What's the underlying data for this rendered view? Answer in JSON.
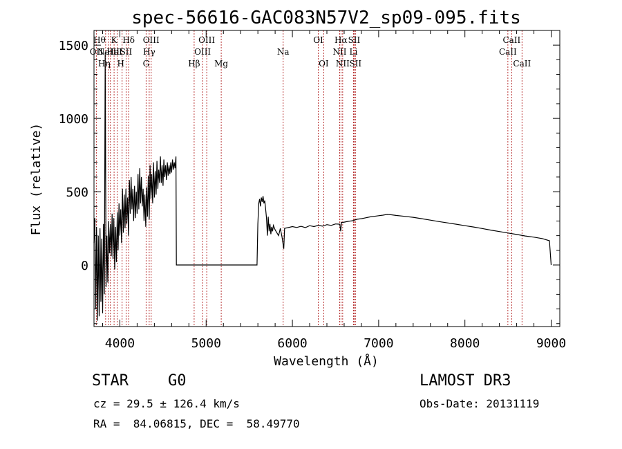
{
  "chart_data": {
    "type": "line",
    "title": "spec-56616-GAC083N57V2_sp09-095.fits",
    "xlabel": "Wavelength (Å)",
    "ylabel": "Flux (relative)",
    "xlim": [
      3700,
      9100
    ],
    "ylim": [
      -420,
      1600
    ],
    "xticks": [
      4000,
      5000,
      6000,
      7000,
      8000,
      9000
    ],
    "yticks": [
      0,
      500,
      1000,
      1500
    ],
    "grid": false,
    "series": [
      {
        "name": "flux",
        "color": "#000000",
        "points": [
          [
            3700,
            150
          ],
          [
            3710,
            320
          ],
          [
            3720,
            -300
          ],
          [
            3730,
            260
          ],
          [
            3740,
            -380
          ],
          [
            3750,
            200
          ],
          [
            3760,
            -350
          ],
          [
            3770,
            250
          ],
          [
            3780,
            -250
          ],
          [
            3790,
            180
          ],
          [
            3800,
            -330
          ],
          [
            3810,
            280
          ],
          [
            3820,
            -200
          ],
          [
            3830,
            1450
          ],
          [
            3840,
            -150
          ],
          [
            3850,
            200
          ],
          [
            3860,
            -120
          ],
          [
            3870,
            300
          ],
          [
            3880,
            80
          ],
          [
            3890,
            280
          ],
          [
            3900,
            60
          ],
          [
            3910,
            350
          ],
          [
            3920,
            40
          ],
          [
            3930,
            320
          ],
          [
            3940,
            -30
          ],
          [
            3950,
            260
          ],
          [
            3960,
            20
          ],
          [
            3970,
            360
          ],
          [
            3980,
            100
          ],
          [
            3990,
            420
          ],
          [
            4000,
            200
          ],
          [
            4010,
            380
          ],
          [
            4020,
            150
          ],
          [
            4030,
            520
          ],
          [
            4040,
            220
          ],
          [
            4050,
            480
          ],
          [
            4060,
            250
          ],
          [
            4070,
            520
          ],
          [
            4080,
            280
          ],
          [
            4090,
            460
          ],
          [
            4100,
            200
          ],
          [
            4110,
            580
          ],
          [
            4120,
            350
          ],
          [
            4130,
            600
          ],
          [
            4140,
            380
          ],
          [
            4150,
            520
          ],
          [
            4160,
            300
          ],
          [
            4170,
            540
          ],
          [
            4180,
            320
          ],
          [
            4190,
            500
          ],
          [
            4200,
            350
          ],
          [
            4210,
            620
          ],
          [
            4220,
            380
          ],
          [
            4230,
            660
          ],
          [
            4240,
            420
          ],
          [
            4250,
            600
          ],
          [
            4260,
            400
          ],
          [
            4270,
            520
          ],
          [
            4280,
            300
          ],
          [
            4290,
            480
          ],
          [
            4300,
            260
          ],
          [
            4310,
            530
          ],
          [
            4320,
            330
          ],
          [
            4330,
            610
          ],
          [
            4340,
            310
          ],
          [
            4350,
            680
          ],
          [
            4360,
            450
          ],
          [
            4370,
            620
          ],
          [
            4380,
            420
          ],
          [
            4390,
            700
          ],
          [
            4400,
            460
          ],
          [
            4410,
            640
          ],
          [
            4420,
            480
          ],
          [
            4430,
            710
          ],
          [
            4440,
            520
          ],
          [
            4450,
            650
          ],
          [
            4460,
            560
          ],
          [
            4470,
            740
          ],
          [
            4480,
            560
          ],
          [
            4490,
            680
          ],
          [
            4500,
            540
          ],
          [
            4510,
            720
          ],
          [
            4520,
            600
          ],
          [
            4530,
            680
          ],
          [
            4540,
            580
          ],
          [
            4550,
            700
          ],
          [
            4560,
            610
          ],
          [
            4570,
            680
          ],
          [
            4580,
            620
          ],
          [
            4590,
            700
          ],
          [
            4600,
            630
          ],
          [
            4610,
            720
          ],
          [
            4620,
            650
          ],
          [
            4630,
            700
          ],
          [
            4640,
            660
          ],
          [
            4650,
            740
          ],
          [
            4655,
            0
          ],
          [
            4800,
            0
          ],
          [
            5000,
            0
          ],
          [
            5200,
            0
          ],
          [
            5400,
            0
          ],
          [
            5590,
            0
          ],
          [
            5600,
            280
          ],
          [
            5610,
            420
          ],
          [
            5620,
            450
          ],
          [
            5630,
            400
          ],
          [
            5640,
            460
          ],
          [
            5650,
            430
          ],
          [
            5660,
            470
          ],
          [
            5670,
            420
          ],
          [
            5680,
            440
          ],
          [
            5690,
            380
          ],
          [
            5700,
            320
          ],
          [
            5710,
            200
          ],
          [
            5720,
            330
          ],
          [
            5730,
            230
          ],
          [
            5740,
            280
          ],
          [
            5750,
            210
          ],
          [
            5760,
            260
          ],
          [
            5770,
            230
          ],
          [
            5780,
            270
          ],
          [
            5800,
            240
          ],
          [
            5820,
            220
          ],
          [
            5840,
            200
          ],
          [
            5860,
            250
          ],
          [
            5880,
            190
          ],
          [
            5900,
            110
          ],
          [
            5910,
            250
          ],
          [
            5950,
            255
          ],
          [
            6000,
            262
          ],
          [
            6050,
            256
          ],
          [
            6100,
            264
          ],
          [
            6150,
            255
          ],
          [
            6200,
            268
          ],
          [
            6250,
            262
          ],
          [
            6300,
            270
          ],
          [
            6350,
            265
          ],
          [
            6400,
            275
          ],
          [
            6450,
            270
          ],
          [
            6500,
            280
          ],
          [
            6550,
            278
          ],
          [
            6560,
            230
          ],
          [
            6570,
            290
          ],
          [
            6600,
            292
          ],
          [
            6650,
            298
          ],
          [
            6700,
            302
          ],
          [
            6750,
            312
          ],
          [
            6800,
            316
          ],
          [
            6850,
            322
          ],
          [
            6900,
            328
          ],
          [
            6950,
            332
          ],
          [
            7000,
            336
          ],
          [
            7050,
            340
          ],
          [
            7100,
            345
          ],
          [
            7150,
            342
          ],
          [
            7200,
            338
          ],
          [
            7300,
            332
          ],
          [
            7400,
            325
          ],
          [
            7500,
            316
          ],
          [
            7600,
            306
          ],
          [
            7700,
            296
          ],
          [
            7800,
            287
          ],
          [
            7900,
            278
          ],
          [
            8000,
            268
          ],
          [
            8100,
            259
          ],
          [
            8200,
            249
          ],
          [
            8300,
            238
          ],
          [
            8400,
            228
          ],
          [
            8500,
            218
          ],
          [
            8600,
            208
          ],
          [
            8700,
            198
          ],
          [
            8800,
            190
          ],
          [
            8900,
            180
          ],
          [
            8980,
            165
          ],
          [
            9000,
            0
          ]
        ]
      }
    ],
    "lines": [
      {
        "x": 3727,
        "label": "OII",
        "row": 2,
        "anchor": "middle"
      },
      {
        "x": 3835,
        "label": "Hθ",
        "row": 1,
        "anchor": "end"
      },
      {
        "x": 3869,
        "label": "NeIII",
        "row": 2,
        "anchor": "middle"
      },
      {
        "x": 3890,
        "label": "Hη",
        "row": 3,
        "anchor": "end"
      },
      {
        "x": 3933,
        "label": "K",
        "row": 1,
        "anchor": "middle"
      },
      {
        "x": 3968,
        "label": "H",
        "row": 3,
        "anchor": "start"
      },
      {
        "x": 4026,
        "label": "HeI",
        "row": 2,
        "anchor": "end"
      },
      {
        "x": 4072,
        "label": "SII",
        "row": 2,
        "anchor": "middle"
      },
      {
        "x": 4102,
        "label": "Hδ",
        "row": 1,
        "anchor": "middle"
      },
      {
        "x": 4304,
        "label": "G",
        "row": 3,
        "anchor": "middle"
      },
      {
        "x": 4340,
        "label": "Hγ",
        "row": 2,
        "anchor": "middle"
      },
      {
        "x": 4363,
        "label": "OIII",
        "row": 1,
        "anchor": "middle"
      },
      {
        "x": 4861,
        "label": "Hβ",
        "row": 3,
        "anchor": "middle"
      },
      {
        "x": 4959,
        "label": "OIII",
        "row": 2,
        "anchor": "middle"
      },
      {
        "x": 5007,
        "label": "OIII",
        "row": 1,
        "anchor": "middle"
      },
      {
        "x": 5175,
        "label": "Mg",
        "row": 3,
        "anchor": "middle"
      },
      {
        "x": 5893,
        "label": "Na",
        "row": 2,
        "anchor": "middle"
      },
      {
        "x": 6300,
        "label": "OI",
        "row": 1,
        "anchor": "middle"
      },
      {
        "x": 6363,
        "label": "OI",
        "row": 3,
        "anchor": "middle"
      },
      {
        "x": 6548,
        "label": "NII",
        "row": 2,
        "anchor": "middle"
      },
      {
        "x": 6563,
        "label": "Hα",
        "row": 1,
        "anchor": "middle"
      },
      {
        "x": 6583,
        "label": "NII",
        "row": 3,
        "anchor": "middle"
      },
      {
        "x": 6708,
        "label": "Li",
        "row": 2,
        "anchor": "middle"
      },
      {
        "x": 6716,
        "label": "SII",
        "row": 1,
        "anchor": "middle"
      },
      {
        "x": 6731,
        "label": "SII",
        "row": 3,
        "anchor": "middle"
      },
      {
        "x": 8498,
        "label": "CaII",
        "row": 2,
        "anchor": "middle"
      },
      {
        "x": 8542,
        "label": "CaII",
        "row": 1,
        "anchor": "middle"
      },
      {
        "x": 8662,
        "label": "CaII",
        "row": 3,
        "anchor": "middle"
      }
    ],
    "line_color": "#b22222"
  },
  "info": {
    "class_label": "STAR",
    "subclass": "G0",
    "survey": "LAMOST DR3",
    "cz": "cz = 29.5 ± 126.4 km/s",
    "obs_date": "Obs-Date: 20131119",
    "radec": "RA =  84.06815, DEC =  58.49770"
  }
}
